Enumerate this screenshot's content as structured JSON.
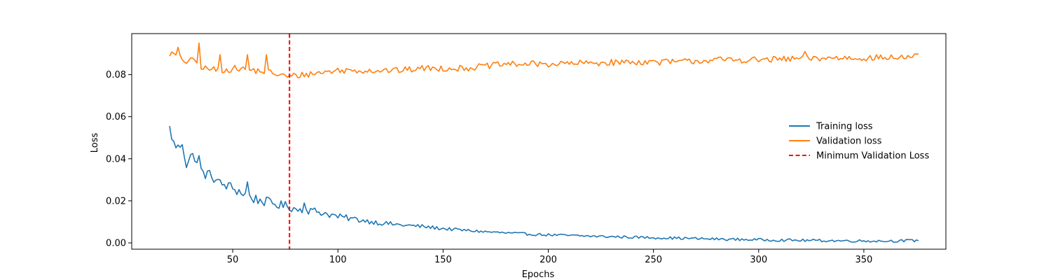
{
  "chart_data": {
    "type": "line",
    "title": "",
    "xlabel": "Epochs",
    "ylabel": "Loss",
    "xlim": [
      2,
      389
    ],
    "ylim": [
      -0.003,
      0.0995
    ],
    "xticks": [
      50,
      100,
      150,
      200,
      250,
      300,
      350
    ],
    "yticks": [
      0.0,
      0.02,
      0.04,
      0.06,
      0.08
    ],
    "ytick_labels": [
      "0.00",
      "0.02",
      "0.04",
      "0.06",
      "0.08"
    ],
    "grid": false,
    "legend_position": "center-right",
    "series": [
      {
        "name": "Training loss",
        "color": "#1f77b4",
        "x_start": 20,
        "x_end": 376,
        "keypoints": [
          [
            20,
            0.0545
          ],
          [
            22,
            0.047
          ],
          [
            24,
            0.045
          ],
          [
            26,
            0.048
          ],
          [
            28,
            0.037
          ],
          [
            30,
            0.041
          ],
          [
            32,
            0.041
          ],
          [
            34,
            0.036
          ],
          [
            36,
            0.033
          ],
          [
            40,
            0.032
          ],
          [
            44,
            0.028
          ],
          [
            48,
            0.027
          ],
          [
            52,
            0.025
          ],
          [
            56,
            0.023
          ],
          [
            60,
            0.021
          ],
          [
            64,
            0.02
          ],
          [
            68,
            0.019
          ],
          [
            72,
            0.018
          ],
          [
            76,
            0.0175
          ],
          [
            80,
            0.016
          ],
          [
            90,
            0.015
          ],
          [
            100,
            0.0125
          ],
          [
            110,
            0.011
          ],
          [
            120,
            0.0095
          ],
          [
            130,
            0.0085
          ],
          [
            140,
            0.0078
          ],
          [
            150,
            0.0068
          ],
          [
            160,
            0.006
          ],
          [
            170,
            0.0053
          ],
          [
            180,
            0.0047
          ],
          [
            190,
            0.0042
          ],
          [
            200,
            0.0038
          ],
          [
            220,
            0.0032
          ],
          [
            240,
            0.0027
          ],
          [
            260,
            0.0023
          ],
          [
            280,
            0.0018
          ],
          [
            300,
            0.0015
          ],
          [
            320,
            0.0012
          ],
          [
            340,
            0.001
          ],
          [
            360,
            0.0009
          ],
          [
            376,
            0.0011
          ]
        ],
        "noise": 0.0018,
        "spikes": [
          [
            34,
            0.0415
          ],
          [
            57,
            0.029
          ],
          [
            84,
            0.019
          ]
        ]
      },
      {
        "name": "Validation loss",
        "color": "#ff7f0e",
        "x_start": 20,
        "x_end": 376,
        "keypoints": [
          [
            20,
            0.09
          ],
          [
            24,
            0.089
          ],
          [
            28,
            0.086
          ],
          [
            32,
            0.087
          ],
          [
            36,
            0.083
          ],
          [
            44,
            0.082
          ],
          [
            52,
            0.083
          ],
          [
            60,
            0.082
          ],
          [
            68,
            0.081
          ],
          [
            76,
            0.079
          ],
          [
            84,
            0.08
          ],
          [
            92,
            0.081
          ],
          [
            100,
            0.082
          ],
          [
            110,
            0.082
          ],
          [
            120,
            0.082
          ],
          [
            130,
            0.082
          ],
          [
            140,
            0.083
          ],
          [
            150,
            0.083
          ],
          [
            160,
            0.083
          ],
          [
            170,
            0.084
          ],
          [
            180,
            0.085
          ],
          [
            190,
            0.085
          ],
          [
            200,
            0.085
          ],
          [
            220,
            0.0855
          ],
          [
            240,
            0.086
          ],
          [
            260,
            0.086
          ],
          [
            280,
            0.087
          ],
          [
            300,
            0.087
          ],
          [
            320,
            0.0875
          ],
          [
            340,
            0.088
          ],
          [
            360,
            0.088
          ],
          [
            376,
            0.0885
          ]
        ],
        "noise": 0.0015,
        "spikes": [
          [
            24,
            0.093
          ],
          [
            34,
            0.095
          ],
          [
            44,
            0.0895
          ],
          [
            57,
            0.0895
          ],
          [
            66,
            0.0895
          ],
          [
            322,
            0.091
          ]
        ]
      }
    ],
    "vlines": [
      {
        "name": "Minimum Validation Loss",
        "x": 77,
        "color": "#ff0000",
        "style": "dashed"
      }
    ]
  }
}
